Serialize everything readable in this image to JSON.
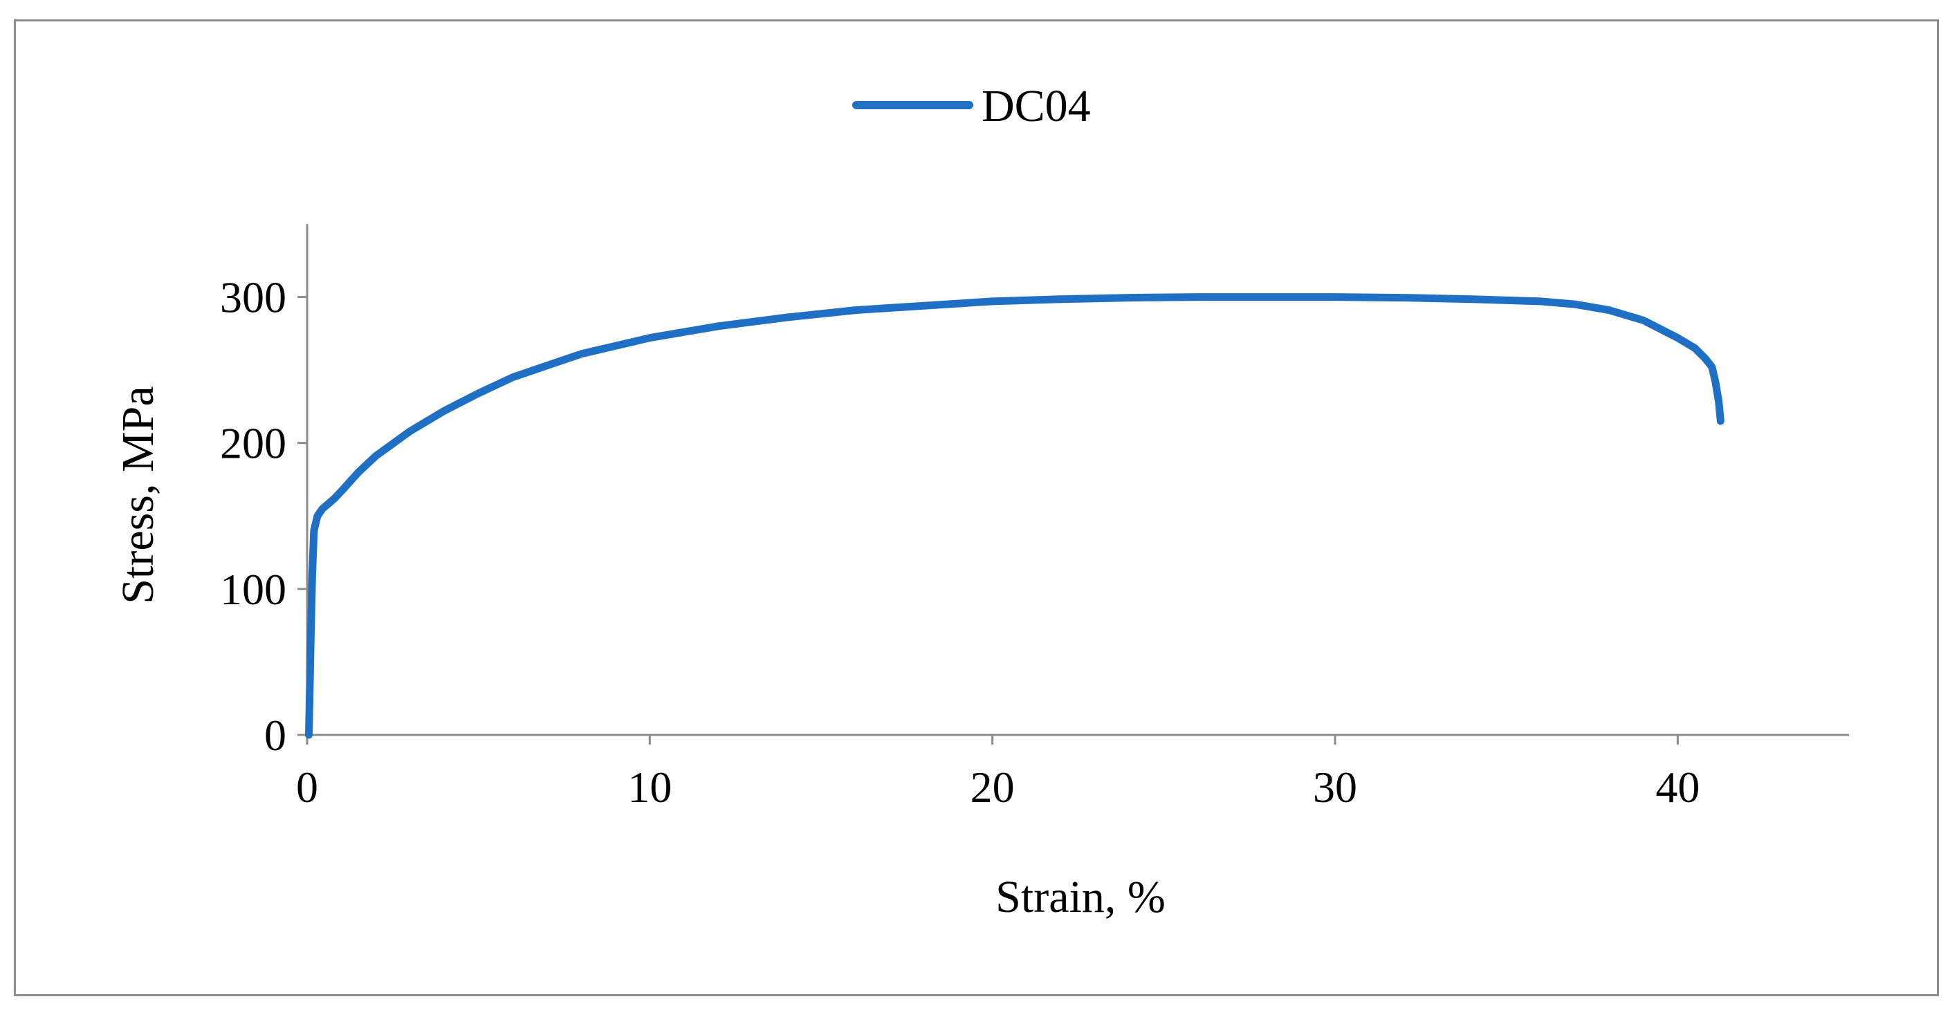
{
  "chart_data": {
    "type": "line",
    "title": "",
    "xlabel": "Strain, %",
    "ylabel": "Stress, MPa",
    "xlim": [
      0,
      45
    ],
    "ylim": [
      0,
      350
    ],
    "xticks": [
      0,
      10,
      20,
      30,
      40
    ],
    "yticks": [
      0,
      100,
      200,
      300
    ],
    "grid": false,
    "legend_position": "top-center",
    "series": [
      {
        "name": "DC04",
        "color": "#1f6fc5",
        "x": [
          0.05,
          0.1,
          0.15,
          0.2,
          0.3,
          0.45,
          0.6,
          0.8,
          1,
          1.5,
          2,
          3,
          4,
          5,
          6,
          8,
          10,
          12,
          14,
          16,
          18,
          20,
          22,
          24,
          26,
          28,
          30,
          32,
          34,
          36,
          37,
          38,
          39,
          40,
          40.5,
          40.8,
          41.0,
          41.1,
          41.2,
          41.25
        ],
        "y": [
          0,
          60,
          110,
          140,
          150,
          155,
          158,
          162,
          167,
          180,
          191,
          208,
          222,
          234,
          245,
          261,
          272,
          280,
          286,
          291,
          294,
          297,
          298.5,
          299.5,
          300,
          300,
          300,
          299.5,
          298.5,
          297,
          295,
          291,
          284,
          272,
          265,
          258,
          252,
          242,
          228,
          215
        ]
      }
    ]
  }
}
